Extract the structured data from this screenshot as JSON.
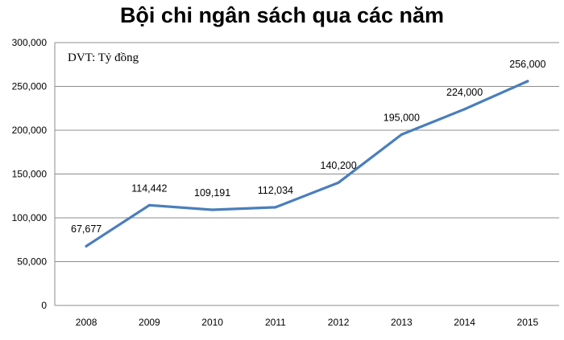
{
  "chart_data": {
    "type": "line",
    "title": "Bội chi ngân sách qua các năm",
    "unit_note": "DVT: Tỷ đồng",
    "categories": [
      "2008",
      "2009",
      "2010",
      "2011",
      "2012",
      "2013",
      "2014",
      "2015"
    ],
    "series": [
      {
        "values": [
          67677,
          114442,
          109191,
          112034,
          140200,
          195000,
          224000,
          256000
        ],
        "data_labels": [
          "67,677",
          "114,442",
          "109,191",
          "112,034",
          "140,200",
          "195,000",
          "224,000",
          "256,000"
        ]
      }
    ],
    "y_ticks": [
      0,
      50000,
      100000,
      150000,
      200000,
      250000,
      300000
    ],
    "y_tick_labels": [
      "0",
      "50,000",
      "100,000",
      "150,000",
      "200,000",
      "250,000",
      "300,000"
    ],
    "ylim": [
      0,
      300000
    ],
    "grid": true,
    "legend": "none",
    "colors": {
      "line": "#4a7ebb",
      "grid": "#8c8c8c"
    }
  }
}
